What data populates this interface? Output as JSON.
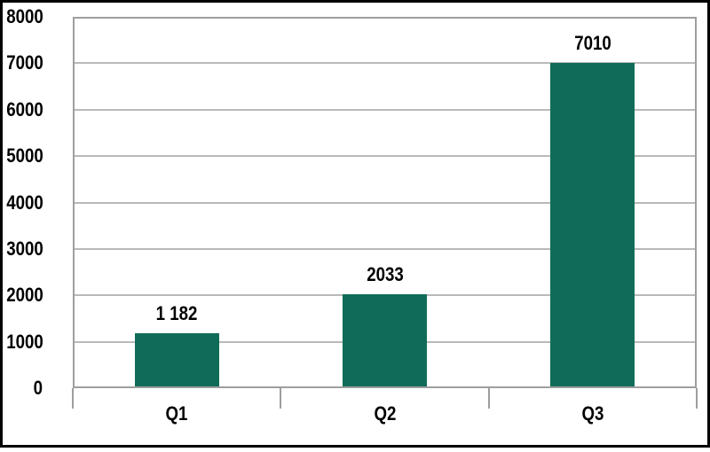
{
  "chart_data": {
    "type": "bar",
    "title": "",
    "xlabel": "",
    "ylabel": "",
    "categories": [
      "Q1",
      "Q2",
      "Q3"
    ],
    "values": [
      1182,
      2033,
      7010
    ],
    "value_labels": [
      "1 182",
      "2033",
      "7010"
    ],
    "y_ticks": [
      0,
      1000,
      2000,
      3000,
      4000,
      5000,
      6000,
      7000,
      8000
    ],
    "y_tick_labels": [
      "0",
      "1000",
      "2000",
      "3000",
      "4000",
      "5000",
      "6000",
      "7000",
      "8000"
    ],
    "ylim": [
      0,
      8000
    ],
    "grid": "horizontal-only",
    "legend": "none",
    "colors": {
      "bar": "#106c58",
      "gridline": "#b9b9b9",
      "plot_border": "#9e9e9e",
      "text": "#000000",
      "outer_frame": "#000000",
      "background": "#ffffff"
    }
  }
}
